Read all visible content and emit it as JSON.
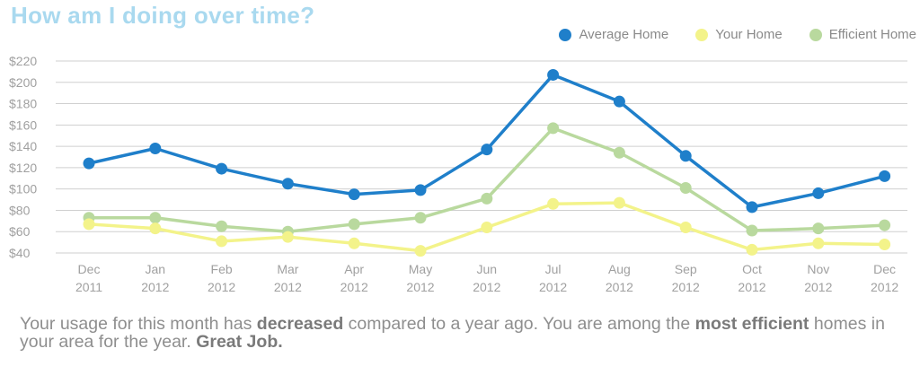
{
  "title": "How am I doing over time?",
  "legend": [
    {
      "label": "Average Home",
      "color": "#1f7fca"
    },
    {
      "label": "Your Home",
      "color": "#f3f38a"
    },
    {
      "label": "Efficient Home",
      "color": "#b9d99e"
    }
  ],
  "footer": {
    "part1": "Your usage for this month has ",
    "bold1": "decreased",
    "part2": " compared to a year ago. You are among the ",
    "bold2": "most efficient",
    "part3": " homes in your area for the year. ",
    "bold3": "Great Job."
  },
  "chart_data": {
    "type": "line",
    "categories": [
      [
        "Dec",
        "2011"
      ],
      [
        "Jan",
        "2012"
      ],
      [
        "Feb",
        "2012"
      ],
      [
        "Mar",
        "2012"
      ],
      [
        "Apr",
        "2012"
      ],
      [
        "May",
        "2012"
      ],
      [
        "Jun",
        "2012"
      ],
      [
        "Jul",
        "2012"
      ],
      [
        "Aug",
        "2012"
      ],
      [
        "Sep",
        "2012"
      ],
      [
        "Oct",
        "2012"
      ],
      [
        "Nov",
        "2012"
      ],
      [
        "Dec",
        "2012"
      ]
    ],
    "y_ticks": [
      "$220",
      "$200",
      "$180",
      "$160",
      "$140",
      "$120",
      "$100",
      "$80",
      "$60",
      "$40"
    ],
    "ylim": [
      40,
      220
    ],
    "grid": true,
    "legend_position": "top-right",
    "series": [
      {
        "name": "Average Home",
        "color": "#1f7fca",
        "values": [
          124,
          138,
          119,
          105,
          95,
          99,
          137,
          207,
          182,
          131,
          83,
          96,
          112
        ]
      },
      {
        "name": "Efficient Home",
        "color": "#b9d99e",
        "values": [
          73,
          73,
          65,
          60,
          67,
          73,
          91,
          157,
          134,
          101,
          61,
          63,
          66
        ]
      },
      {
        "name": "Your Home",
        "color": "#f3f38a",
        "values": [
          67,
          63,
          51,
          55,
          49,
          42,
          64,
          86,
          87,
          64,
          43,
          49,
          48
        ]
      }
    ]
  }
}
